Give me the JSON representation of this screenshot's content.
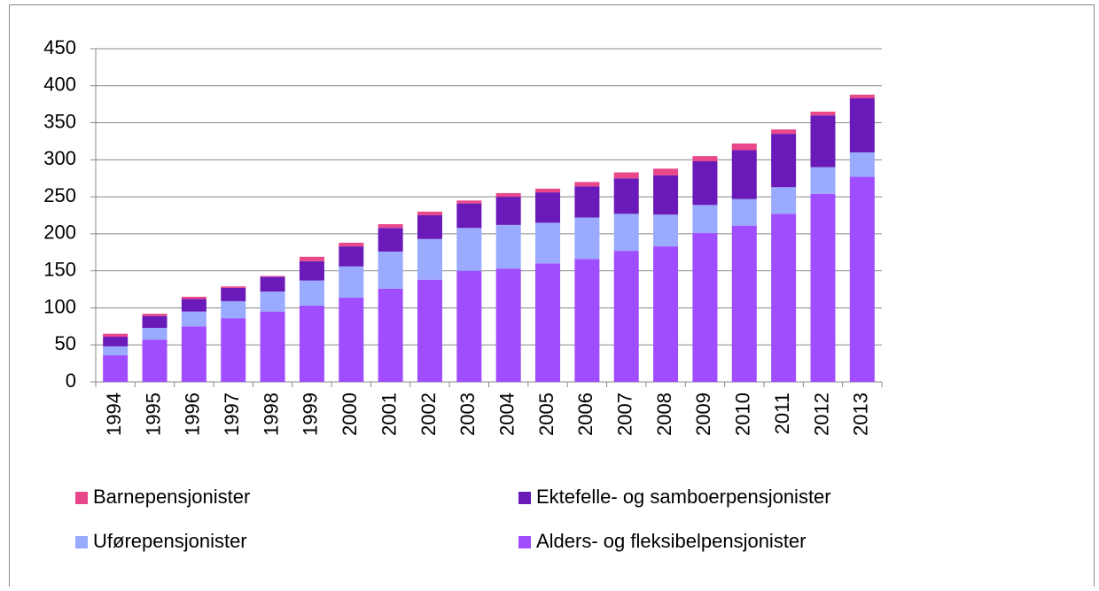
{
  "chart_data": {
    "type": "bar",
    "stacked": true,
    "categories": [
      "1994",
      "1995",
      "1996",
      "1997",
      "1998",
      "1999",
      "2000",
      "2001",
      "2002",
      "2003",
      "2004",
      "2005",
      "2006",
      "2007",
      "2008",
      "2009",
      "2010",
      "2011",
      "2012",
      "2013"
    ],
    "series": [
      {
        "name": "Alders- og fleksibelpensjonister",
        "color": "#a04cff",
        "values": [
          36,
          57,
          75,
          86,
          95,
          103,
          114,
          126,
          138,
          150,
          153,
          160,
          166,
          177,
          183,
          201,
          211,
          227,
          254,
          277
        ]
      },
      {
        "name": "Uførepensjonister",
        "color": "#99aaff",
        "values": [
          12,
          16,
          20,
          23,
          27,
          34,
          42,
          50,
          55,
          58,
          59,
          55,
          56,
          50,
          43,
          38,
          36,
          36,
          36,
          33
        ]
      },
      {
        "name": "Ektefelle- og samboerpensjonister",
        "color": "#6a1ab8",
        "values": [
          13,
          16,
          17,
          18,
          20,
          26,
          27,
          32,
          32,
          33,
          38,
          41,
          42,
          48,
          53,
          59,
          66,
          72,
          70,
          73
        ]
      },
      {
        "name": "Barnepensjonister",
        "color": "#e8488a",
        "values": [
          4,
          3,
          3,
          2,
          1,
          6,
          5,
          5,
          5,
          4,
          5,
          5,
          6,
          8,
          9,
          7,
          9,
          6,
          5,
          5
        ]
      }
    ],
    "ylim": [
      0,
      450
    ],
    "yticks": [
      0,
      50,
      100,
      150,
      200,
      250,
      300,
      350,
      400,
      450
    ],
    "grid": true
  }
}
